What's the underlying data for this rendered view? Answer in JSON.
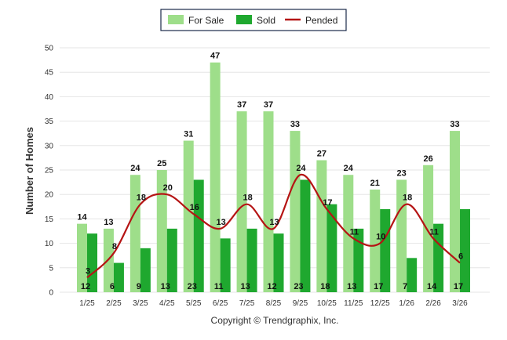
{
  "chart_data": {
    "type": "bar",
    "categories": [
      "1/25",
      "2/25",
      "3/25",
      "4/25",
      "5/25",
      "6/25",
      "7/25",
      "8/25",
      "9/25",
      "10/25",
      "11/25",
      "12/25",
      "1/26",
      "2/26",
      "3/26"
    ],
    "series": [
      {
        "name": "For Sale",
        "type": "bar",
        "color": "#9ede8a",
        "values": [
          14,
          13,
          24,
          25,
          31,
          47,
          37,
          37,
          33,
          27,
          24,
          21,
          23,
          26,
          33
        ]
      },
      {
        "name": "Sold",
        "type": "bar",
        "color": "#1fa82f",
        "values": [
          12,
          6,
          9,
          13,
          23,
          11,
          13,
          12,
          23,
          18,
          13,
          17,
          7,
          14,
          17
        ]
      },
      {
        "name": "Pended",
        "type": "line",
        "color": "#b51414",
        "values": [
          3,
          8,
          18,
          20,
          16,
          13,
          18,
          13,
          24,
          17,
          11,
          10,
          18,
          11,
          6
        ]
      }
    ],
    "ylabel": "Number of Homes",
    "ylim": [
      0,
      50
    ],
    "yticks": [
      0,
      5,
      10,
      15,
      20,
      25,
      30,
      35,
      40,
      45,
      50
    ],
    "grid": true,
    "legend_position": "top-center"
  },
  "footer": {
    "copyright": "Copyright © Trendgraphix, Inc."
  }
}
